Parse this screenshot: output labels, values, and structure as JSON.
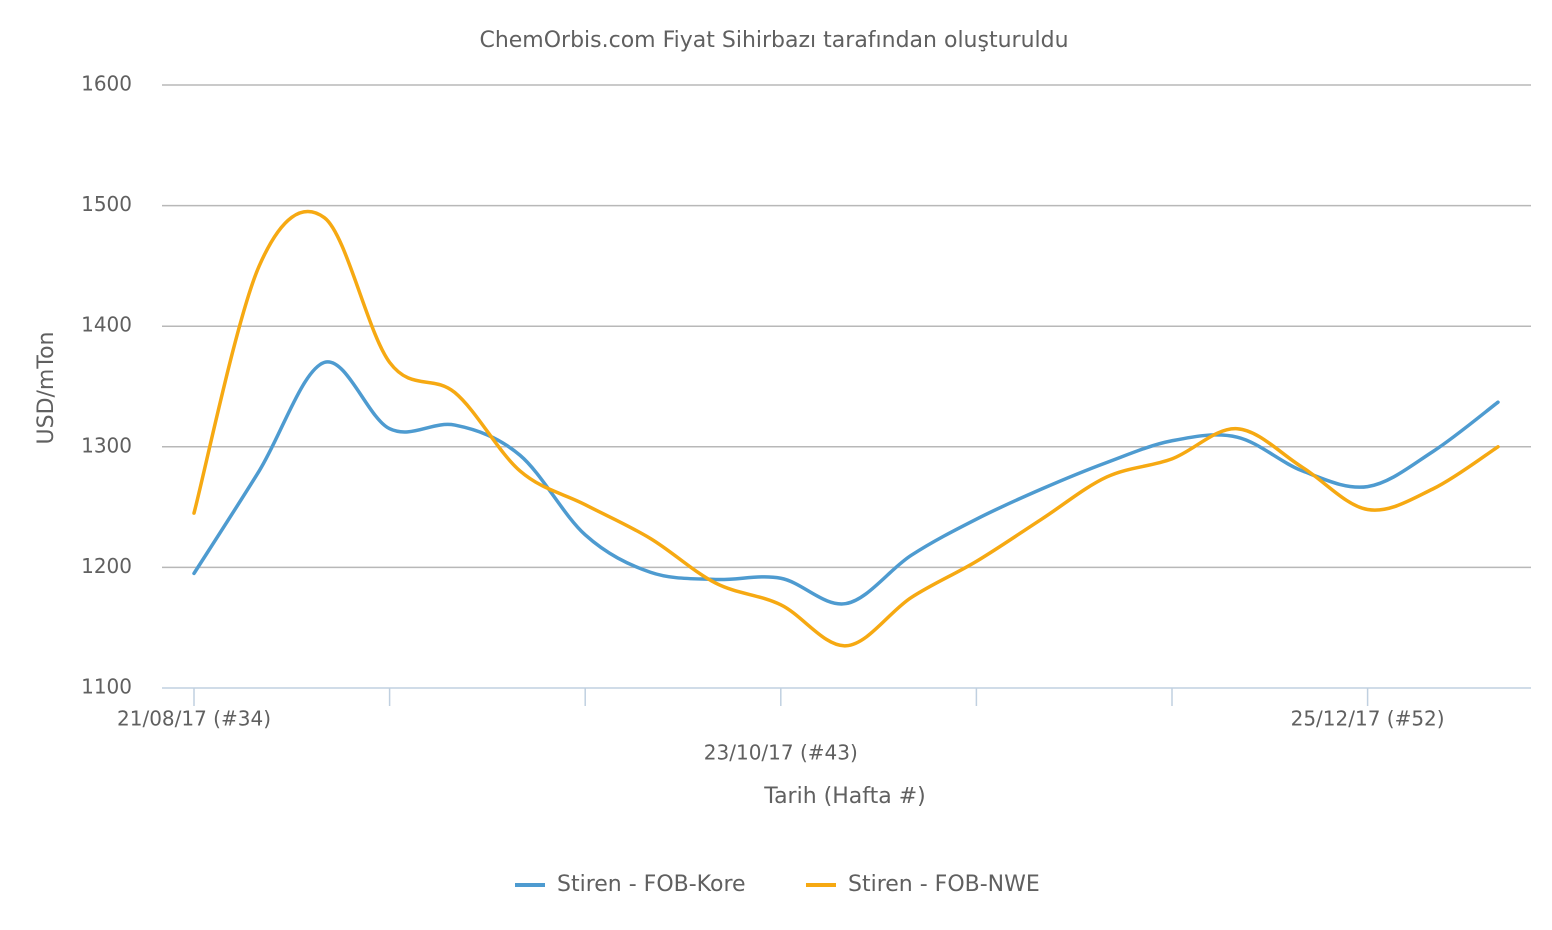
{
  "chart_data": {
    "type": "line",
    "title": "ChemOrbis.com Fiyat Sihirbazı tarafından oluşturuldu",
    "x_label": "Tarih (Hafta #)",
    "y_label": "USD/mTon",
    "categories": [
      "21/08/17 (#34)",
      null,
      null,
      null,
      null,
      null,
      null,
      null,
      null,
      "23/10/17 (#43)",
      null,
      null,
      null,
      null,
      null,
      null,
      null,
      null,
      "25/12/17 (#52)",
      null,
      null
    ],
    "series": [
      {
        "name": "Stiren - FOB-Kore",
        "color": "#4e9bd0",
        "values": [
          1195,
          1280,
          1370,
          1315,
          1318,
          1293,
          1227,
          1196,
          1190,
          1191,
          1170,
          1210,
          1240,
          1265,
          1287,
          1305,
          1308,
          1280,
          1267,
          1296,
          1337
        ]
      },
      {
        "name": "Stiren - FOB-NWE",
        "color": "#f6a912",
        "values": [
          1245,
          1450,
          1490,
          1370,
          1345,
          1280,
          1252,
          1224,
          1187,
          1169,
          1135,
          1175,
          1205,
          1240,
          1275,
          1290,
          1315,
          1283,
          1248,
          1265,
          1300
        ]
      }
    ],
    "ylim": [
      1100,
      1600
    ],
    "yticks": [
      1100,
      1200,
      1300,
      1400,
      1500,
      1600
    ],
    "grid": true,
    "legend": "bottom"
  }
}
